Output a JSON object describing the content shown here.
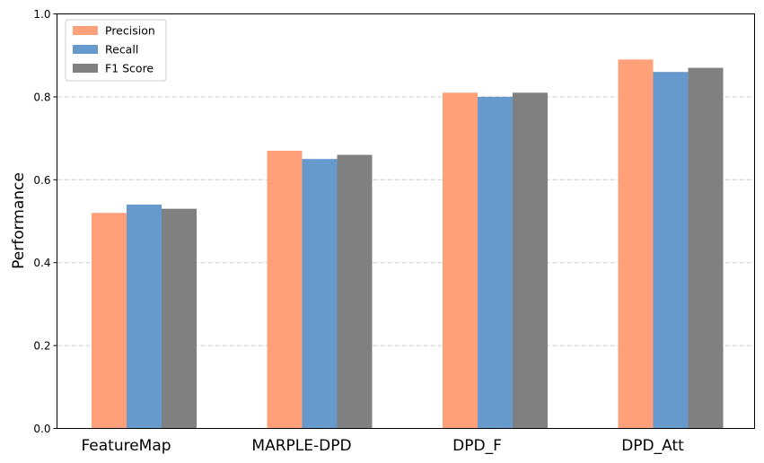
{
  "chart_data": {
    "type": "bar",
    "title": "",
    "xlabel": "",
    "ylabel": "Performance",
    "ylim": [
      0,
      1.0
    ],
    "yticks": [
      "0.0",
      "0.2",
      "0.4",
      "0.6",
      "0.8",
      "1.0"
    ],
    "grid": "y-dashed",
    "legend_position": "top-left",
    "categories": [
      "FeatureMap",
      "MARPLE-DPD",
      "DPD_F",
      "DPD_Att"
    ],
    "series": [
      {
        "name": "Precision",
        "color": "#ffa07a",
        "values": [
          0.52,
          0.67,
          0.81,
          0.89
        ]
      },
      {
        "name": "Recall",
        "color": "#6699cc",
        "values": [
          0.54,
          0.65,
          0.8,
          0.86
        ]
      },
      {
        "name": "F1 Score",
        "color": "#808080",
        "values": [
          0.53,
          0.66,
          0.81,
          0.87
        ]
      }
    ]
  }
}
